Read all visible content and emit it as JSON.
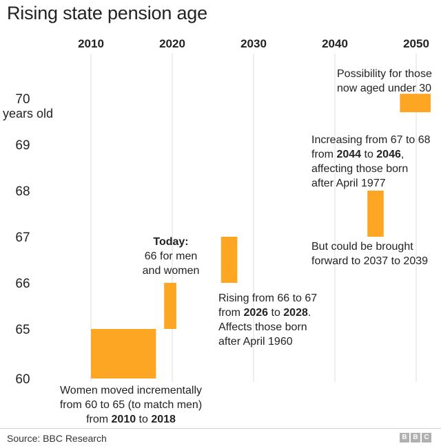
{
  "title": "Rising state pension age",
  "source": "Source: BBC Research",
  "logo_text": "BBC",
  "colors": {
    "bar": "#fca624",
    "grid": "#dddddd",
    "text": "#222222"
  },
  "chart_data": {
    "type": "bar",
    "orientation": "floating-range",
    "x_axis": {
      "position": "top",
      "ticks": [
        2010,
        2020,
        2030,
        2040,
        2050
      ],
      "range": [
        2010,
        2052
      ]
    },
    "y_axis": {
      "ticks": [
        "60",
        "65",
        "66",
        "67",
        "68",
        "69",
        "70"
      ],
      "unit_label": "years old",
      "note": "axis is broken: 60 to 65 occupies one band"
    },
    "grid": "vertical",
    "bars": [
      {
        "start_year": 2010,
        "end_year": 2018,
        "age_from": 60,
        "age_to": 65
      },
      {
        "start_year": 2019,
        "end_year": 2020.5,
        "age_from": 65,
        "age_to": 66
      },
      {
        "start_year": 2026,
        "end_year": 2028,
        "age_from": 66,
        "age_to": 67
      },
      {
        "start_year": 2044,
        "end_year": 2046,
        "age_from": 67,
        "age_to": 68
      },
      {
        "start_year": 2048,
        "end_year": 2052,
        "age_from": 69.7,
        "age_to": 70.1
      }
    ]
  },
  "annotations": {
    "women": {
      "l1": "Women moved incrementally",
      "l2": "from 60 to 65 (to match men)",
      "l3a": "from ",
      "l3b": "2010",
      "l3c": " to ",
      "l3d": "2018"
    },
    "today": {
      "l1": "Today:",
      "l2": "66 for men",
      "l3": "and women"
    },
    "rising": {
      "l1": "Rising from 66 to 67",
      "l2a": "from ",
      "l2b": "2026",
      "l2c": " to ",
      "l2d": "2028",
      "l2e": ".",
      "l3": "Affects those born",
      "l4": "after April 1960"
    },
    "increasing": {
      "l1": "Increasing from 67 to 68",
      "l2a": "from ",
      "l2b": "2044",
      "l2c": " to ",
      "l2d": "2046",
      "l2e": ",",
      "l3": "affecting those born",
      "l4": "after April 1977"
    },
    "brought": {
      "l1": "But could be brought",
      "l2": "forward to 2037 to 2039"
    },
    "possibility": {
      "l1": "Possibility for those",
      "l2": "now aged under 30"
    }
  }
}
